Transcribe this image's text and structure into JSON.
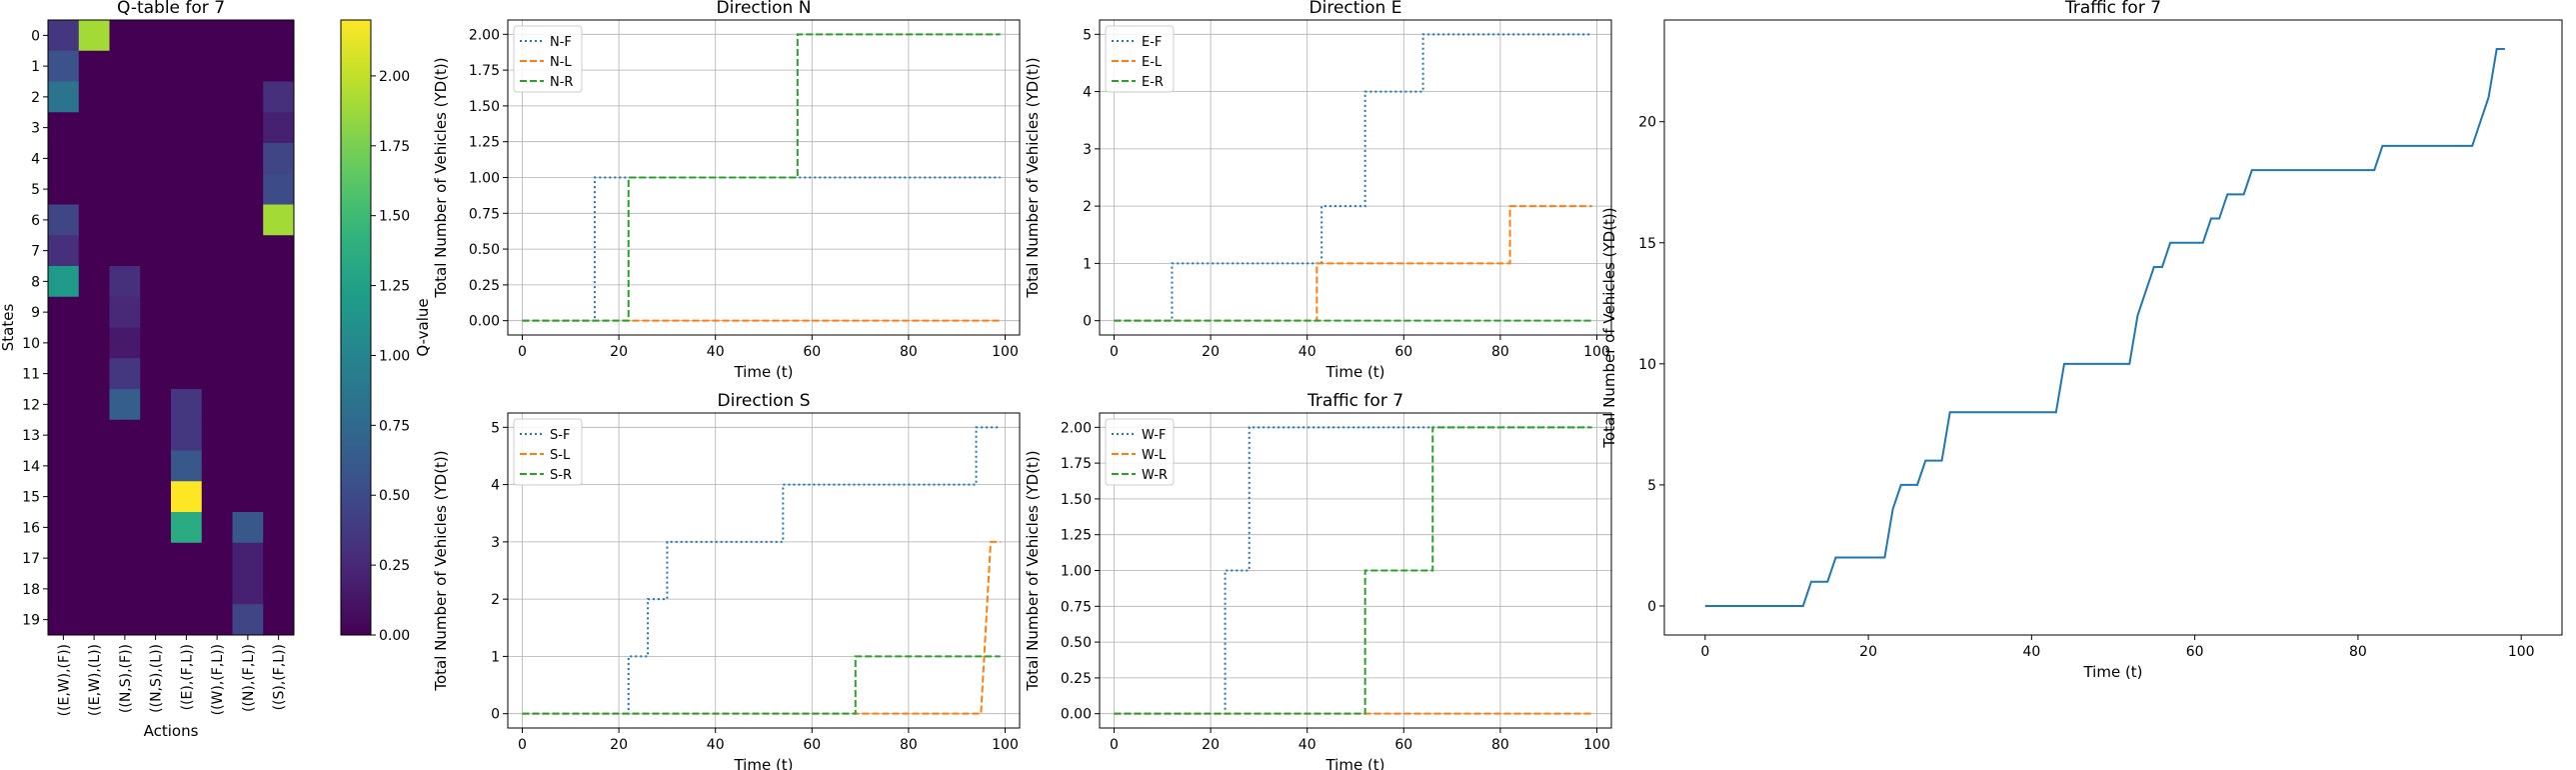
{
  "chart_data": [
    {
      "type": "heatmap",
      "title": "Q-table for 7",
      "xlabel": "Actions",
      "ylabel": "States",
      "colorbar_label": "Q-value",
      "colorbar_ticks": [
        0.0,
        0.25,
        0.5,
        0.75,
        1.0,
        1.25,
        1.5,
        1.75,
        2.0
      ],
      "colorbar_tick_labels": [
        "0.00",
        "0.25",
        "0.50",
        "0.75",
        "1.00",
        "1.25",
        "1.50",
        "1.75",
        "2.00"
      ],
      "vmin": 0,
      "vmax": 2.2,
      "colormap": "viridis",
      "x_categories": [
        "((E,W),(F))",
        "((E,W),(L))",
        "((N,S),(F))",
        "((N,S),(L))",
        "((E),(F,L))",
        "((W),(F,L))",
        "((N),(F,L))",
        "((S),(F,L))"
      ],
      "y_categories": [
        "0",
        "1",
        "2",
        "3",
        "4",
        "5",
        "6",
        "7",
        "8",
        "9",
        "10",
        "11",
        "12",
        "13",
        "14",
        "15",
        "16",
        "17",
        "18",
        "19"
      ],
      "values": [
        [
          0.35,
          1.9,
          0,
          0,
          0,
          0,
          0,
          0
        ],
        [
          0.55,
          0,
          0,
          0,
          0,
          0,
          0,
          0
        ],
        [
          0.85,
          0,
          0,
          0,
          0,
          0,
          0,
          0.3
        ],
        [
          0,
          0,
          0,
          0,
          0,
          0,
          0,
          0.2
        ],
        [
          0,
          0,
          0,
          0,
          0,
          0,
          0,
          0.45
        ],
        [
          0,
          0,
          0,
          0,
          0,
          0,
          0,
          0.5
        ],
        [
          0.45,
          0,
          0,
          0,
          0,
          0,
          0,
          1.9
        ],
        [
          0.3,
          0,
          0,
          0,
          0,
          0,
          0,
          0
        ],
        [
          1.2,
          0,
          0.3,
          0,
          0,
          0,
          0,
          0
        ],
        [
          0,
          0,
          0.25,
          0,
          0,
          0,
          0,
          0
        ],
        [
          0,
          0,
          0.15,
          0,
          0,
          0,
          0,
          0
        ],
        [
          0,
          0,
          0.35,
          0,
          0,
          0,
          0,
          0
        ],
        [
          0,
          0,
          0.65,
          0,
          0.35,
          0,
          0,
          0
        ],
        [
          0,
          0,
          0,
          0,
          0.35,
          0,
          0,
          0
        ],
        [
          0,
          0,
          0,
          0,
          0.6,
          0,
          0,
          0
        ],
        [
          0,
          0,
          0,
          0,
          2.2,
          0,
          0,
          0
        ],
        [
          0,
          0,
          0,
          0,
          1.35,
          0,
          0.6,
          0
        ],
        [
          0,
          0,
          0,
          0,
          0,
          0,
          0.2,
          0
        ],
        [
          0,
          0,
          0,
          0,
          0,
          0,
          0.2,
          0
        ],
        [
          0,
          0,
          0,
          0,
          0,
          0,
          0.45,
          0
        ]
      ]
    },
    {
      "type": "line",
      "title": "Direction N",
      "xlabel": "Time (t)",
      "ylabel": "Total Number of Vehicles (YD(t))",
      "xlim": [
        -3,
        103
      ],
      "ylim": [
        -0.1,
        2.1
      ],
      "xticks": [
        0,
        20,
        40,
        60,
        80,
        100
      ],
      "yticks": [
        0.0,
        0.25,
        0.5,
        0.75,
        1.0,
        1.25,
        1.5,
        1.75,
        2.0
      ],
      "ytick_labels": [
        "0.00",
        "0.25",
        "0.50",
        "0.75",
        "1.00",
        "1.25",
        "1.50",
        "1.75",
        "2.00"
      ],
      "grid": true,
      "legend": "upper-left",
      "series": [
        {
          "name": "N-F",
          "color": "#1f77b4",
          "dash": "dotted",
          "x": [
            0,
            15,
            15,
            99
          ],
          "y": [
            0,
            0,
            1,
            1
          ]
        },
        {
          "name": "N-L",
          "color": "#ff7f0e",
          "dash": "dashed",
          "x": [
            0,
            99
          ],
          "y": [
            0,
            0
          ]
        },
        {
          "name": "N-R",
          "color": "#2ca02c",
          "dash": "dashed",
          "x": [
            0,
            22,
            22,
            57,
            57,
            99
          ],
          "y": [
            0,
            0,
            1,
            1,
            2,
            2
          ]
        }
      ]
    },
    {
      "type": "line",
      "title": "Direction E",
      "xlabel": "Time (t)",
      "ylabel": "Total Number of Vehicles (YD(t))",
      "xlim": [
        -3,
        103
      ],
      "ylim": [
        -0.25,
        5.25
      ],
      "xticks": [
        0,
        20,
        40,
        60,
        80,
        100
      ],
      "yticks": [
        0,
        1,
        2,
        3,
        4,
        5
      ],
      "ytick_labels": [
        "0",
        "1",
        "2",
        "3",
        "4",
        "5"
      ],
      "grid": true,
      "legend": "upper-left",
      "series": [
        {
          "name": "E-F",
          "color": "#1f77b4",
          "dash": "dotted",
          "x": [
            0,
            12,
            12,
            43,
            43,
            52,
            52,
            60,
            60,
            64,
            64,
            99
          ],
          "y": [
            0,
            0,
            1,
            1,
            2,
            2,
            4,
            4,
            4,
            4,
            5,
            5
          ]
        },
        {
          "name": "E-L",
          "color": "#ff7f0e",
          "dash": "dashed",
          "x": [
            0,
            42,
            42,
            82,
            82,
            99
          ],
          "y": [
            0,
            0,
            1,
            1,
            2,
            2
          ]
        },
        {
          "name": "E-R",
          "color": "#2ca02c",
          "dash": "dashed",
          "x": [
            0,
            99
          ],
          "y": [
            0,
            0
          ]
        }
      ]
    },
    {
      "type": "line",
      "title": "Direction S",
      "xlabel": "Time (t)",
      "ylabel": "Total Number of Vehicles (YD(t))",
      "xlim": [
        -3,
        103
      ],
      "ylim": [
        -0.25,
        5.25
      ],
      "xticks": [
        0,
        20,
        40,
        60,
        80,
        100
      ],
      "yticks": [
        0,
        1,
        2,
        3,
        4,
        5
      ],
      "ytick_labels": [
        "0",
        "1",
        "2",
        "3",
        "4",
        "5"
      ],
      "grid": true,
      "legend": "upper-left",
      "series": [
        {
          "name": "S-F",
          "color": "#1f77b4",
          "dash": "dotted",
          "x": [
            0,
            22,
            22,
            26,
            26,
            28,
            28,
            30,
            30,
            54,
            54,
            94,
            94,
            99
          ],
          "y": [
            0,
            0,
            1,
            1,
            2,
            2,
            2,
            2,
            3,
            3,
            4,
            4,
            5,
            5
          ]
        },
        {
          "name": "S-L",
          "color": "#ff7f0e",
          "dash": "dashed",
          "x": [
            0,
            95,
            97,
            99
          ],
          "y": [
            0,
            0,
            3,
            3
          ]
        },
        {
          "name": "S-R",
          "color": "#2ca02c",
          "dash": "dashed",
          "x": [
            0,
            69,
            69,
            99
          ],
          "y": [
            0,
            0,
            1,
            1
          ]
        }
      ]
    },
    {
      "type": "line",
      "title": "Traffic for 7",
      "xlabel": "Time (t)",
      "ylabel": "Total Number of Vehicles (YD(t))",
      "xlim": [
        -3,
        103
      ],
      "ylim": [
        -0.1,
        2.1
      ],
      "xticks": [
        0,
        20,
        40,
        60,
        80,
        100
      ],
      "yticks": [
        0.0,
        0.25,
        0.5,
        0.75,
        1.0,
        1.25,
        1.5,
        1.75,
        2.0
      ],
      "ytick_labels": [
        "0.00",
        "0.25",
        "0.50",
        "0.75",
        "1.00",
        "1.25",
        "1.50",
        "1.75",
        "2.00"
      ],
      "grid": true,
      "legend": "upper-left",
      "series": [
        {
          "name": "W-F",
          "color": "#1f77b4",
          "dash": "dotted",
          "x": [
            0,
            23,
            23,
            28,
            28,
            99
          ],
          "y": [
            0,
            0,
            1,
            1,
            2,
            2
          ]
        },
        {
          "name": "W-L",
          "color": "#ff7f0e",
          "dash": "dashed",
          "x": [
            0,
            99
          ],
          "y": [
            0,
            0
          ]
        },
        {
          "name": "W-R",
          "color": "#2ca02c",
          "dash": "dashed",
          "x": [
            0,
            52,
            52,
            58,
            58,
            60,
            60,
            62,
            62,
            66,
            66,
            99
          ],
          "y": [
            0,
            0,
            1,
            1,
            1,
            1,
            1,
            1,
            1,
            1,
            2,
            2
          ]
        }
      ]
    },
    {
      "type": "line",
      "title": "Traffic for 7",
      "xlabel": "Time (t)",
      "ylabel": "Total Number of Vehicles (YD(t))",
      "xlim": [
        -5,
        105
      ],
      "ylim": [
        -1.2,
        24.2
      ],
      "xticks": [
        0,
        20,
        40,
        60,
        80,
        100
      ],
      "yticks": [
        0,
        5,
        10,
        15,
        20
      ],
      "ytick_labels": [
        "0",
        "5",
        "10",
        "15",
        "20"
      ],
      "grid": false,
      "series": [
        {
          "color": "#1f77b4",
          "dash": "solid",
          "x": [
            0,
            12,
            13,
            15,
            16,
            22,
            23,
            24,
            26,
            27,
            28,
            29,
            30,
            43,
            44,
            52,
            53,
            54,
            55,
            56,
            57,
            58,
            61,
            62,
            63,
            64,
            66,
            67,
            69,
            70,
            82,
            83,
            94,
            95,
            96,
            97,
            98
          ],
          "y": [
            0,
            0,
            1,
            1,
            2,
            2,
            4,
            5,
            5,
            6,
            6,
            6,
            8,
            8,
            10,
            10,
            12,
            13,
            14,
            14,
            15,
            15,
            15,
            16,
            16,
            17,
            17,
            18,
            18,
            18,
            18,
            19,
            19,
            20,
            21,
            23,
            23
          ]
        }
      ]
    }
  ]
}
